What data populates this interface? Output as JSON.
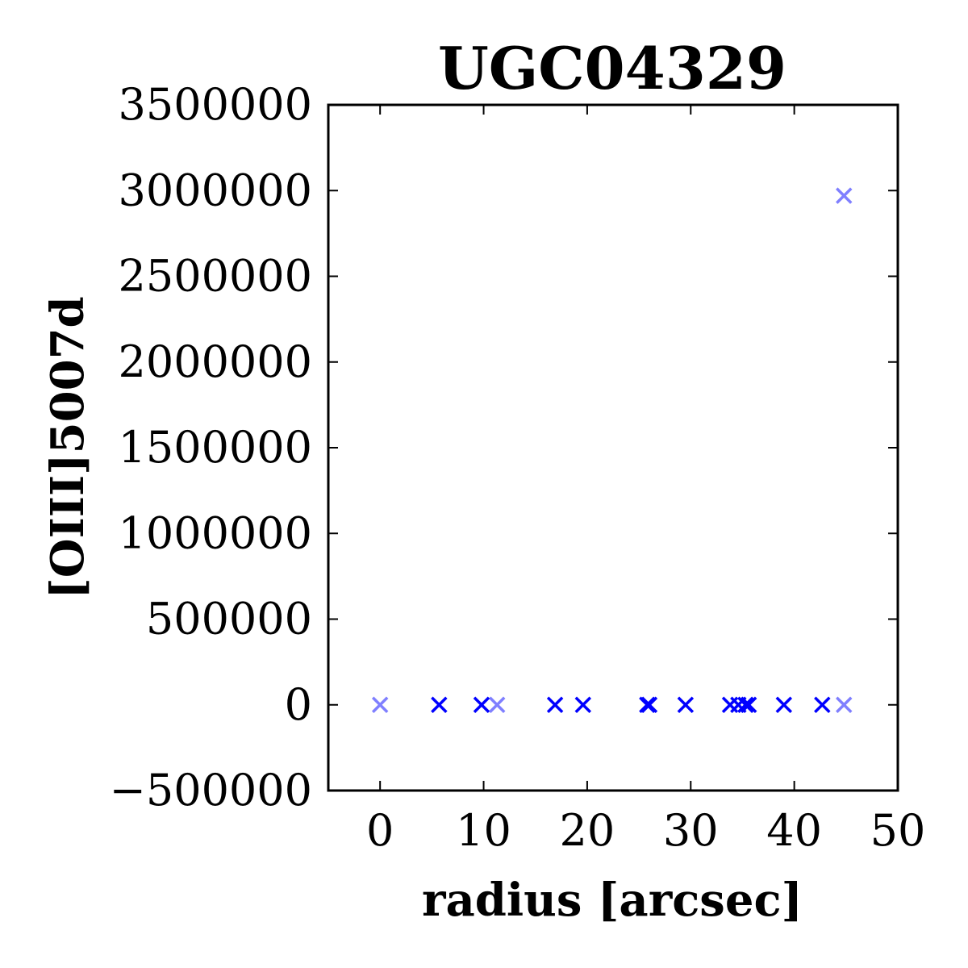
{
  "chart_data": {
    "type": "scatter",
    "title": "UGC04329",
    "xlabel": "radius [arcsec]",
    "ylabel": "[OIII]5007d",
    "xlim": [
      -5,
      50
    ],
    "ylim": [
      -500000,
      3500000
    ],
    "xticks": [
      0,
      10,
      20,
      30,
      40,
      50
    ],
    "yticks": [
      -500000,
      0,
      500000,
      1000000,
      1500000,
      2000000,
      2500000,
      3000000,
      3500000
    ],
    "xtick_labels": [
      "0",
      "10",
      "20",
      "30",
      "40",
      "50"
    ],
    "ytick_labels": [
      "−500000",
      "0",
      "500000",
      "1000000",
      "1500000",
      "2000000",
      "2500000",
      "3000000",
      "3500000"
    ],
    "marker": "x",
    "color": "#0000ff",
    "grid": false,
    "series": [
      {
        "points": [
          {
            "x": 5.7,
            "y": 0
          },
          {
            "x": 9.8,
            "y": 0
          },
          {
            "x": 16.9,
            "y": 0
          },
          {
            "x": 19.6,
            "y": 0
          },
          {
            "x": 25.8,
            "y": 0
          },
          {
            "x": 26.0,
            "y": 0
          },
          {
            "x": 29.5,
            "y": 0
          },
          {
            "x": 33.8,
            "y": 0
          },
          {
            "x": 34.6,
            "y": 0
          },
          {
            "x": 35.3,
            "y": 0
          },
          {
            "x": 35.6,
            "y": 0
          },
          {
            "x": 39.0,
            "y": 0
          },
          {
            "x": 42.7,
            "y": 0
          }
        ],
        "opacity": 1.0
      },
      {
        "points": [
          {
            "x": 0.0,
            "y": 0
          },
          {
            "x": 11.3,
            "y": 0
          },
          {
            "x": 44.8,
            "y": 0
          },
          {
            "x": 44.8,
            "y": 2970000
          }
        ],
        "opacity": 0.5
      }
    ]
  }
}
